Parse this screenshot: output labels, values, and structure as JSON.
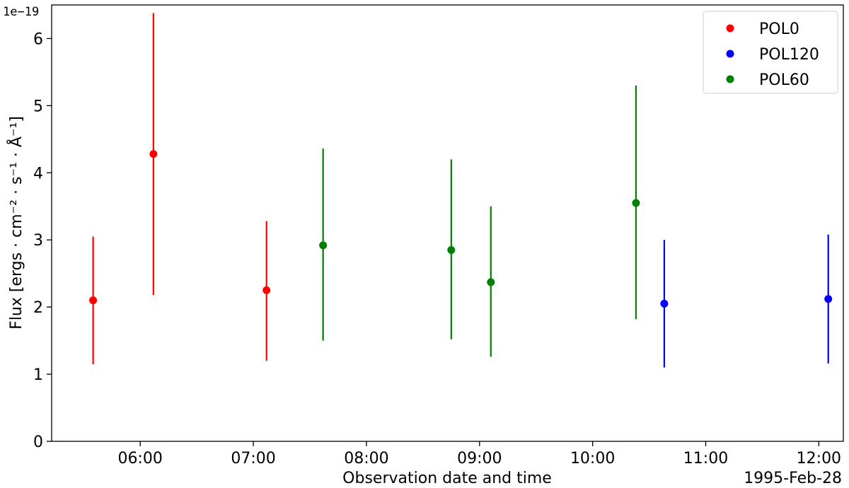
{
  "chart_data": {
    "type": "scatter",
    "xlabel": "Observation date and time",
    "ylabel": "Flux [ergs · cm⁻² · s⁻¹ · Å⁻¹]",
    "y_offset_label": "1e−19",
    "date_label": "1995-Feb-28",
    "x_range": [
      "1995-02-28T05:13",
      "1995-02-28T12:13"
    ],
    "ylim": [
      0,
      6.5
    ],
    "y_scale_factor": "1e-19",
    "x_ticks": [
      {
        "time": "1995-02-28T06:00",
        "label": "06:00"
      },
      {
        "time": "1995-02-28T07:00",
        "label": "07:00"
      },
      {
        "time": "1995-02-28T08:00",
        "label": "08:00"
      },
      {
        "time": "1995-02-28T09:00",
        "label": "09:00"
      },
      {
        "time": "1995-02-28T10:00",
        "label": "10:00"
      },
      {
        "time": "1995-02-28T11:00",
        "label": "11:00"
      },
      {
        "time": "1995-02-28T12:00",
        "label": "12:00"
      }
    ],
    "y_ticks": [
      {
        "value": 0,
        "label": "0"
      },
      {
        "value": 1,
        "label": "1"
      },
      {
        "value": 2,
        "label": "2"
      },
      {
        "value": 3,
        "label": "3"
      },
      {
        "value": 4,
        "label": "4"
      },
      {
        "value": 5,
        "label": "5"
      },
      {
        "value": 6,
        "label": "6"
      }
    ],
    "legend_position": "top-right",
    "grid": false,
    "series": [
      {
        "name": "POL0",
        "color": "#ff0000",
        "points": [
          {
            "x": "1995-02-28T05:35",
            "y": 2.1,
            "lo": 1.15,
            "hi": 3.05
          },
          {
            "x": "1995-02-28T06:07",
            "y": 4.28,
            "lo": 2.18,
            "hi": 6.38
          },
          {
            "x": "1995-02-28T07:07",
            "y": 2.25,
            "lo": 1.2,
            "hi": 3.28
          }
        ]
      },
      {
        "name": "POL120",
        "color": "#0000ff",
        "points": [
          {
            "x": "1995-02-28T10:38",
            "y": 2.05,
            "lo": 1.1,
            "hi": 3.0
          },
          {
            "x": "1995-02-28T12:05",
            "y": 2.12,
            "lo": 1.16,
            "hi": 3.08
          }
        ]
      },
      {
        "name": "POL60",
        "color": "#008000",
        "points": [
          {
            "x": "1995-02-28T07:37",
            "y": 2.92,
            "lo": 1.5,
            "hi": 4.36
          },
          {
            "x": "1995-02-28T08:45",
            "y": 2.85,
            "lo": 1.52,
            "hi": 4.2
          },
          {
            "x": "1995-02-28T09:06",
            "y": 2.37,
            "lo": 1.26,
            "hi": 3.5
          },
          {
            "x": "1995-02-28T10:23",
            "y": 3.55,
            "lo": 1.82,
            "hi": 5.3
          }
        ]
      }
    ]
  }
}
